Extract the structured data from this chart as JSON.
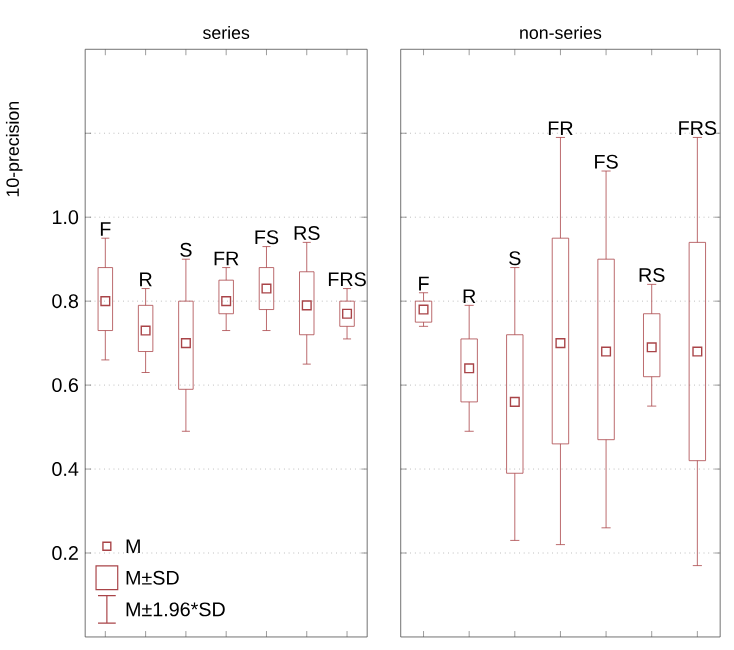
{
  "chart_data": [
    {
      "type": "box",
      "title": "series",
      "ylabel": "10-precision",
      "color": "#a94448",
      "categories": [
        "F",
        "R",
        "S",
        "FR",
        "FS",
        "RS",
        "FRS"
      ],
      "boxes": [
        {
          "low": 0.66,
          "q1": 0.73,
          "median": 0.8,
          "q3": 0.88,
          "high": 0.95
        },
        {
          "low": 0.63,
          "q1": 0.68,
          "median": 0.73,
          "q3": 0.79,
          "high": 0.83
        },
        {
          "low": 0.49,
          "q1": 0.59,
          "median": 0.7,
          "q3": 0.8,
          "high": 0.9
        },
        {
          "low": 0.73,
          "q1": 0.77,
          "median": 0.8,
          "q3": 0.85,
          "high": 0.88
        },
        {
          "low": 0.73,
          "q1": 0.78,
          "median": 0.83,
          "q3": 0.88,
          "high": 0.93
        },
        {
          "low": 0.65,
          "q1": 0.72,
          "median": 0.79,
          "q3": 0.87,
          "high": 0.94
        },
        {
          "low": 0.71,
          "q1": 0.74,
          "median": 0.77,
          "q3": 0.8,
          "high": 0.83
        }
      ],
      "ylim": [
        0,
        1.4
      ],
      "yticks": [
        0.2,
        0.4,
        0.6,
        0.8,
        {
          "value": 1.0,
          "label": "1.0"
        },
        {
          "value": 1.2,
          "label": null
        }
      ],
      "grid": "y",
      "tick_labels": "y",
      "annotations": [
        "M",
        "M±SD",
        "M±1.96*SD"
      ]
    },
    {
      "type": "box",
      "title": "non-series",
      "color": "#a94448",
      "categories": [
        "F",
        "R",
        "S",
        "FR",
        "FS",
        "RS",
        "FRS"
      ],
      "boxes": [
        {
          "low": 0.74,
          "q1": 0.75,
          "median": 0.78,
          "q3": 0.8,
          "high": 0.82
        },
        {
          "low": 0.49,
          "q1": 0.56,
          "median": 0.64,
          "q3": 0.71,
          "high": 0.79
        },
        {
          "low": 0.23,
          "q1": 0.39,
          "median": 0.56,
          "q3": 0.72,
          "high": 0.88
        },
        {
          "low": 0.22,
          "q1": 0.46,
          "median": 0.7,
          "q3": 0.95,
          "high": 1.19
        },
        {
          "low": 0.26,
          "q1": 0.47,
          "median": 0.68,
          "q3": 0.9,
          "high": 1.11
        },
        {
          "low": 0.55,
          "q1": 0.62,
          "median": 0.69,
          "q3": 0.77,
          "high": 0.84
        },
        {
          "low": 0.17,
          "q1": 0.42,
          "median": 0.68,
          "q3": 0.94,
          "high": 1.19
        }
      ],
      "ylim": [
        0,
        1.4
      ],
      "yticks": [
        0.2,
        0.4,
        0.6,
        0.8,
        1.0,
        1.2
      ],
      "grid": "y",
      "tick_labels": false
    }
  ]
}
